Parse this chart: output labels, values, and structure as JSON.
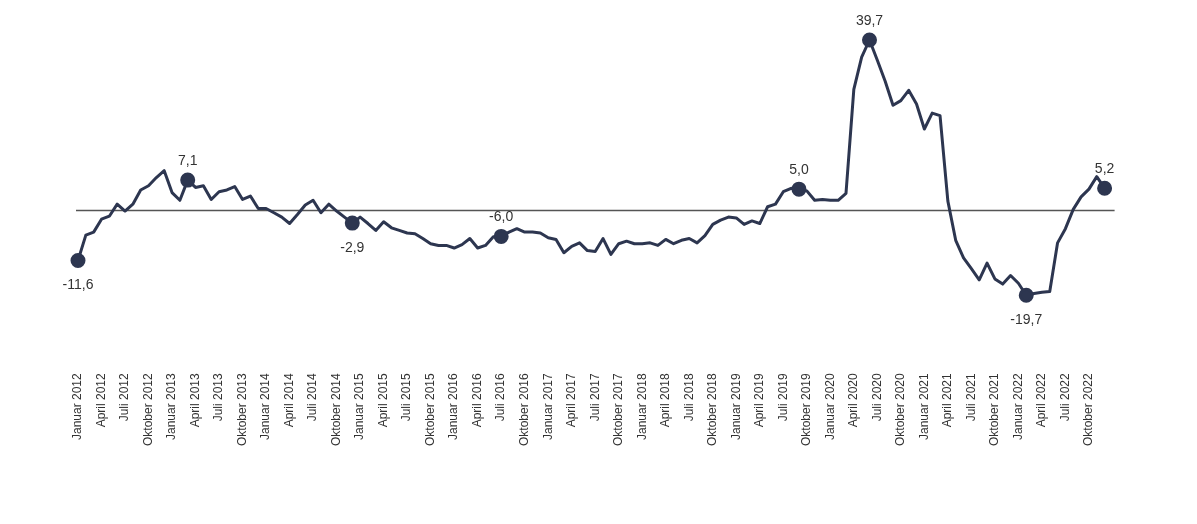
{
  "chart_data": {
    "type": "line",
    "categories": [
      "Januar 2012",
      null,
      null,
      "April 2012",
      null,
      null,
      "Juli 2012",
      null,
      null,
      "Oktober 2012",
      null,
      null,
      "Januar 2013",
      null,
      null,
      "April 2013",
      null,
      null,
      "Juli 2013",
      null,
      null,
      "Oktober 2013",
      null,
      null,
      "Januar 2014",
      null,
      null,
      "April 2014",
      null,
      null,
      "Juli 2014",
      null,
      null,
      "Oktober 2014",
      null,
      null,
      "Januar 2015",
      null,
      null,
      "April 2015",
      null,
      null,
      "Juli 2015",
      null,
      null,
      "Oktober 2015",
      null,
      null,
      "Januar 2016",
      null,
      null,
      "April 2016",
      null,
      null,
      "Juli 2016",
      null,
      null,
      "Oktober 2016",
      null,
      null,
      "Januar 2017",
      null,
      null,
      "April 2017",
      null,
      null,
      "Juli 2017",
      null,
      null,
      "Oktober 2017",
      null,
      null,
      "Januar 2018",
      null,
      null,
      "April 2018",
      null,
      null,
      "Juli 2018",
      null,
      null,
      "Oktober 2018",
      null,
      null,
      "Januar 2019",
      null,
      null,
      "April 2019",
      null,
      null,
      "Juli 2019",
      null,
      null,
      "Oktober 2019",
      null,
      null,
      "Januar 2020",
      null,
      null,
      "April 2020",
      null,
      null,
      "Juli 2020",
      null,
      null,
      "Oktober 2020",
      null,
      null,
      "Januar 2021",
      null,
      null,
      "April 2021",
      null,
      null,
      "Juli 2021",
      null,
      null,
      "Oktober 2021",
      null,
      null,
      "Januar 2022",
      null,
      null,
      "April 2022",
      null,
      null,
      "Juli 2022",
      null,
      null,
      "Oktober 2022",
      null,
      null
    ],
    "series": [
      {
        "color": "#2d3650",
        "values": [
          -11.6,
          -5.7,
          -5.0,
          -2.0,
          -1.3,
          1.5,
          -0.1,
          1.5,
          4.8,
          5.8,
          7.7,
          9.3,
          4.2,
          2.4,
          7.1,
          5.4,
          5.8,
          2.6,
          4.4,
          4.8,
          5.6,
          2.6,
          3.4,
          0.5,
          0.5,
          -0.5,
          -1.5,
          -3.0,
          -0.9,
          1.3,
          2.4,
          -0.5,
          1.5,
          -0.1,
          -1.5,
          -2.9,
          -1.5,
          -3.0,
          -4.6,
          -2.6,
          -4.0,
          -4.6,
          -5.2,
          -5.4,
          -6.5,
          -7.7,
          -8.1,
          -8.1,
          -8.7,
          -7.9,
          -6.5,
          -8.7,
          -8.1,
          -6.1,
          -6.0,
          -5.0,
          -4.2,
          -5.0,
          -5.0,
          -5.2,
          -6.3,
          -6.7,
          -9.8,
          -8.3,
          -7.5,
          -9.3,
          -9.5,
          -6.5,
          -10.2,
          -7.7,
          -7.1,
          -7.7,
          -7.7,
          -7.5,
          -8.1,
          -6.7,
          -7.7,
          -6.9,
          -6.5,
          -7.5,
          -5.8,
          -3.2,
          -2.2,
          -1.5,
          -1.7,
          -3.2,
          -2.4,
          -3.0,
          0.9,
          1.5,
          4.4,
          5.2,
          5.0,
          4.6,
          2.4,
          2.6,
          2.4,
          2.4,
          4.0,
          28.2,
          35.7,
          39.7,
          35.0,
          30.1,
          24.5,
          25.6,
          28.0,
          24.8,
          19.0,
          22.7,
          22.1,
          2.2,
          -6.9,
          -11.0,
          -13.5,
          -16.1,
          -12.2,
          -15.9,
          -17.1,
          -15.1,
          -16.9,
          -19.7,
          -19.3,
          -19.0,
          -18.8,
          -7.5,
          -4.2,
          0.3,
          3.2,
          5.0,
          7.9,
          5.2
        ],
        "value_labels": [
          "-11,6",
          null,
          null,
          null,
          null,
          null,
          null,
          null,
          null,
          null,
          null,
          null,
          null,
          null,
          "7,1",
          null,
          null,
          null,
          null,
          null,
          null,
          null,
          null,
          null,
          null,
          null,
          null,
          null,
          null,
          null,
          null,
          null,
          null,
          null,
          null,
          "-2,9",
          null,
          null,
          null,
          null,
          null,
          null,
          null,
          null,
          null,
          null,
          null,
          null,
          null,
          null,
          null,
          null,
          null,
          null,
          "-6,0",
          null,
          null,
          null,
          null,
          null,
          null,
          null,
          null,
          null,
          null,
          null,
          null,
          null,
          null,
          null,
          null,
          null,
          null,
          null,
          null,
          null,
          null,
          null,
          null,
          null,
          null,
          null,
          null,
          null,
          null,
          null,
          null,
          null,
          null,
          null,
          null,
          null,
          "5,0",
          null,
          null,
          null,
          null,
          null,
          null,
          null,
          null,
          "39,7",
          null,
          null,
          null,
          null,
          null,
          null,
          null,
          null,
          null,
          null,
          null,
          null,
          null,
          null,
          null,
          null,
          null,
          null,
          null,
          "-19,7",
          null,
          null,
          null,
          null,
          null,
          null,
          null,
          null,
          null,
          "5,2"
        ]
      }
    ],
    "ref_lines": [
      {
        "axis": "y",
        "value": 0,
        "color": "#555555"
      }
    ],
    "line_style": "solid",
    "grid": false,
    "legend": false,
    "tick_labels": "x"
  }
}
